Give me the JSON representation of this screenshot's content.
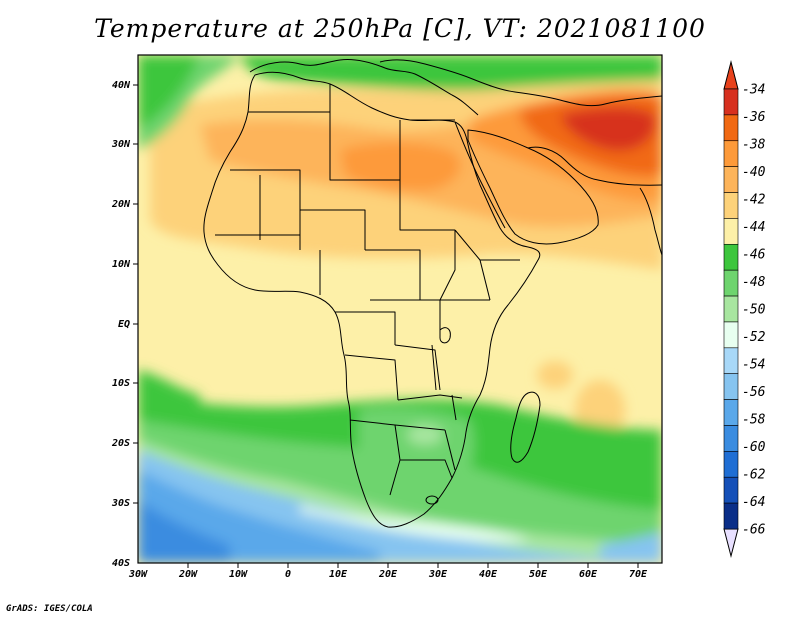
{
  "title": "Temperature at 250hPa [C], VT: 2021081100",
  "footer": "GrADS: IGES/COLA",
  "map": {
    "lat_labels": [
      "40N",
      "30N",
      "20N",
      "10N",
      "EQ",
      "10S",
      "20S",
      "30S",
      "40S"
    ],
    "lon_labels": [
      "30W",
      "20W",
      "10W",
      "0",
      "10E",
      "20E",
      "30E",
      "40E",
      "50E",
      "60E",
      "70E"
    ]
  },
  "colorbar": {
    "labels": [
      "-34",
      "-36",
      "-38",
      "-40",
      "-42",
      "-44",
      "-46",
      "-48",
      "-50",
      "-52",
      "-54",
      "-56",
      "-58",
      "-60",
      "-62",
      "-64",
      "-66"
    ],
    "colors": [
      "#d7301f",
      "#f16913",
      "#fd9a3a",
      "#fdb45a",
      "#fdd27a",
      "#fdf0a8",
      "#3dc63d",
      "#6ed46e",
      "#a8e6a0",
      "#e8fff0",
      "#a8d8f8",
      "#86c4f0",
      "#5aa8ea",
      "#3a8ce0",
      "#1f6ed4",
      "#1550b8",
      "#0a2e88"
    ],
    "colors_top_arrow": "#e8421c",
    "colors_bottom_arrow": "#e8e0ff"
  }
}
